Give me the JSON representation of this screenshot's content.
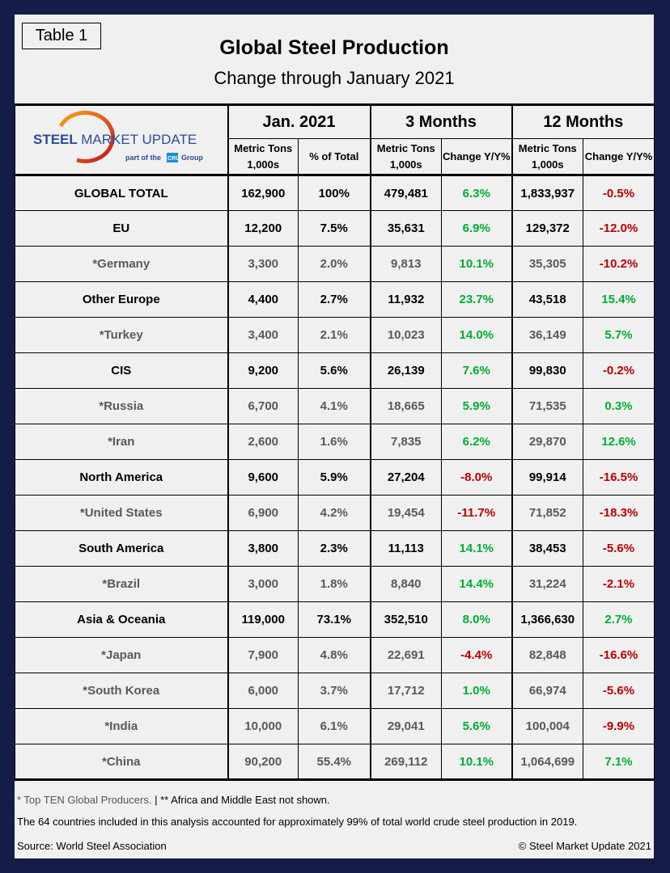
{
  "table_tag": "Table 1",
  "title": "Global Steel Production",
  "subtitle": "Change through January 2021",
  "logo": {
    "main_bold": "STEEL",
    "main_rest": "MARKET UPDATE",
    "sub_pre": "part of the",
    "sub_badge": "CRU",
    "sub_post": "Group"
  },
  "groups": [
    "Jan. 2021",
    "3 Months",
    "12 Months"
  ],
  "subheaders": [
    "Metric Tons 1,000s",
    "% of Total",
    "Metric Tons 1,000s",
    "Change Y/Y%",
    "Metric Tons 1,000s",
    "Change Y/Y%"
  ],
  "colors": {
    "positive": "#00b030",
    "negative": "#c00000",
    "background": "#161c48"
  },
  "rows": [
    {
      "name": "GLOBAL TOTAL",
      "level": "main",
      "cells": [
        "162,900",
        "100%",
        "479,481",
        "6.3%",
        "1,833,937",
        "-0.5%"
      ]
    },
    {
      "name": "EU",
      "level": "main",
      "cells": [
        "12,200",
        "7.5%",
        "35,631",
        "6.9%",
        "129,372",
        "-12.0%"
      ]
    },
    {
      "name": "*Germany",
      "level": "sub",
      "cells": [
        "3,300",
        "2.0%",
        "9,813",
        "10.1%",
        "35,305",
        "-10.2%"
      ]
    },
    {
      "name": "Other Europe",
      "level": "main",
      "cells": [
        "4,400",
        "2.7%",
        "11,932",
        "23.7%",
        "43,518",
        "15.4%"
      ]
    },
    {
      "name": "*Turkey",
      "level": "sub",
      "cells": [
        "3,400",
        "2.1%",
        "10,023",
        "14.0%",
        "36,149",
        "5.7%"
      ]
    },
    {
      "name": "CIS",
      "level": "main",
      "cells": [
        "9,200",
        "5.6%",
        "26,139",
        "7.6%",
        "99,830",
        "-0.2%"
      ]
    },
    {
      "name": "*Russia",
      "level": "sub",
      "cells": [
        "6,700",
        "4.1%",
        "18,665",
        "5.9%",
        "71,535",
        "0.3%"
      ]
    },
    {
      "name": "*Iran",
      "level": "sub",
      "cells": [
        "2,600",
        "1.6%",
        "7,835",
        "6.2%",
        "29,870",
        "12.6%"
      ]
    },
    {
      "name": "North America",
      "level": "main",
      "cells": [
        "9,600",
        "5.9%",
        "27,204",
        "-8.0%",
        "99,914",
        "-16.5%"
      ]
    },
    {
      "name": "*United States",
      "level": "sub",
      "cells": [
        "6,900",
        "4.2%",
        "19,454",
        "-11.7%",
        "71,852",
        "-18.3%"
      ]
    },
    {
      "name": "South America",
      "level": "main",
      "cells": [
        "3,800",
        "2.3%",
        "11,113",
        "14.1%",
        "38,453",
        "-5.6%"
      ]
    },
    {
      "name": "*Brazil",
      "level": "sub",
      "cells": [
        "3,000",
        "1.8%",
        "8,840",
        "14.4%",
        "31,224",
        "-2.1%"
      ]
    },
    {
      "name": "Asia & Oceania",
      "level": "main",
      "cells": [
        "119,000",
        "73.1%",
        "352,510",
        "8.0%",
        "1,366,630",
        "2.7%"
      ]
    },
    {
      "name": "*Japan",
      "level": "sub",
      "cells": [
        "7,900",
        "4.8%",
        "22,691",
        "-4.4%",
        "82,848",
        "-16.6%"
      ]
    },
    {
      "name": "*South Korea",
      "level": "sub",
      "cells": [
        "6,000",
        "3.7%",
        "17,712",
        "1.0%",
        "66,974",
        "-5.6%"
      ]
    },
    {
      "name": "*India",
      "level": "sub",
      "cells": [
        "10,000",
        "6.1%",
        "29,041",
        "5.6%",
        "100,004",
        "-9.9%"
      ]
    },
    {
      "name": "*China",
      "level": "sub",
      "cells": [
        "90,200",
        "55.4%",
        "269,112",
        "10.1%",
        "1,064,699",
        "7.1%"
      ]
    }
  ],
  "footer": {
    "note_a": "* Top TEN Global Producers.",
    "note_sep": "|",
    "note_b": "** Africa and Middle East not shown.",
    "coverage": "The 64 countries included in this analysis accounted for approximately 99% of total world crude steel production in 2019.",
    "source": "Source: World Steel Association",
    "copyright": "© Steel Market Update 2021"
  }
}
